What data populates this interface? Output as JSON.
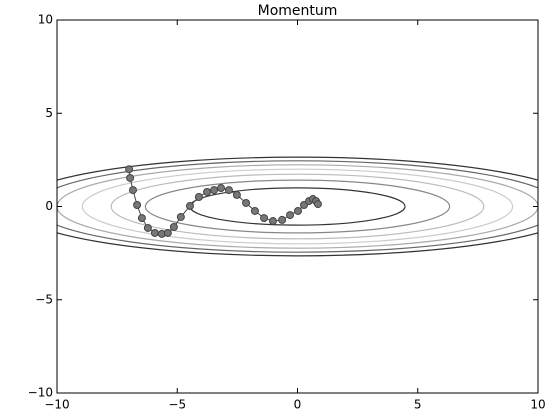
{
  "chart_data": {
    "type": "line",
    "title": "Momentum",
    "x": [
      -7.0,
      -6.96,
      -6.84,
      -6.67,
      -6.47,
      -6.22,
      -5.93,
      -5.64,
      -5.39,
      -5.14,
      -4.85,
      -4.47,
      -4.1,
      -3.76,
      -3.47,
      -3.18,
      -2.85,
      -2.52,
      -2.14,
      -1.77,
      -1.39,
      -1.02,
      -0.64,
      -0.31,
      0.02,
      0.27,
      0.48,
      0.64,
      0.77,
      0.85
    ],
    "series": [
      {
        "color": "#777777",
        "edge_color": "#444444",
        "values": [
          2.0,
          1.53,
          0.88,
          0.08,
          -0.62,
          -1.15,
          -1.42,
          -1.47,
          -1.42,
          -1.1,
          -0.56,
          0.03,
          0.51,
          0.78,
          0.88,
          0.99,
          0.88,
          0.62,
          0.19,
          -0.24,
          -0.62,
          -0.78,
          -0.72,
          -0.46,
          -0.24,
          0.08,
          0.29,
          0.4,
          0.29,
          0.13
        ]
      }
    ],
    "contour_levels": [
      1,
      2,
      3,
      4,
      5,
      6,
      7
    ],
    "contour_colors": [
      "#333333",
      "#888888",
      "#bbbbbb",
      "#cccccc",
      "#aaaaaa",
      "#666666",
      "#333333"
    ],
    "xlim": [
      -10,
      10
    ],
    "ylim": [
      -10,
      10
    ],
    "xticks": [
      {
        "value": -10,
        "label": "−10"
      },
      {
        "value": -5,
        "label": "−5"
      },
      0,
      5,
      10
    ],
    "yticks": [
      {
        "value": -10,
        "label": "−10"
      },
      {
        "value": -5,
        "label": "−5"
      },
      0,
      5,
      10
    ]
  }
}
